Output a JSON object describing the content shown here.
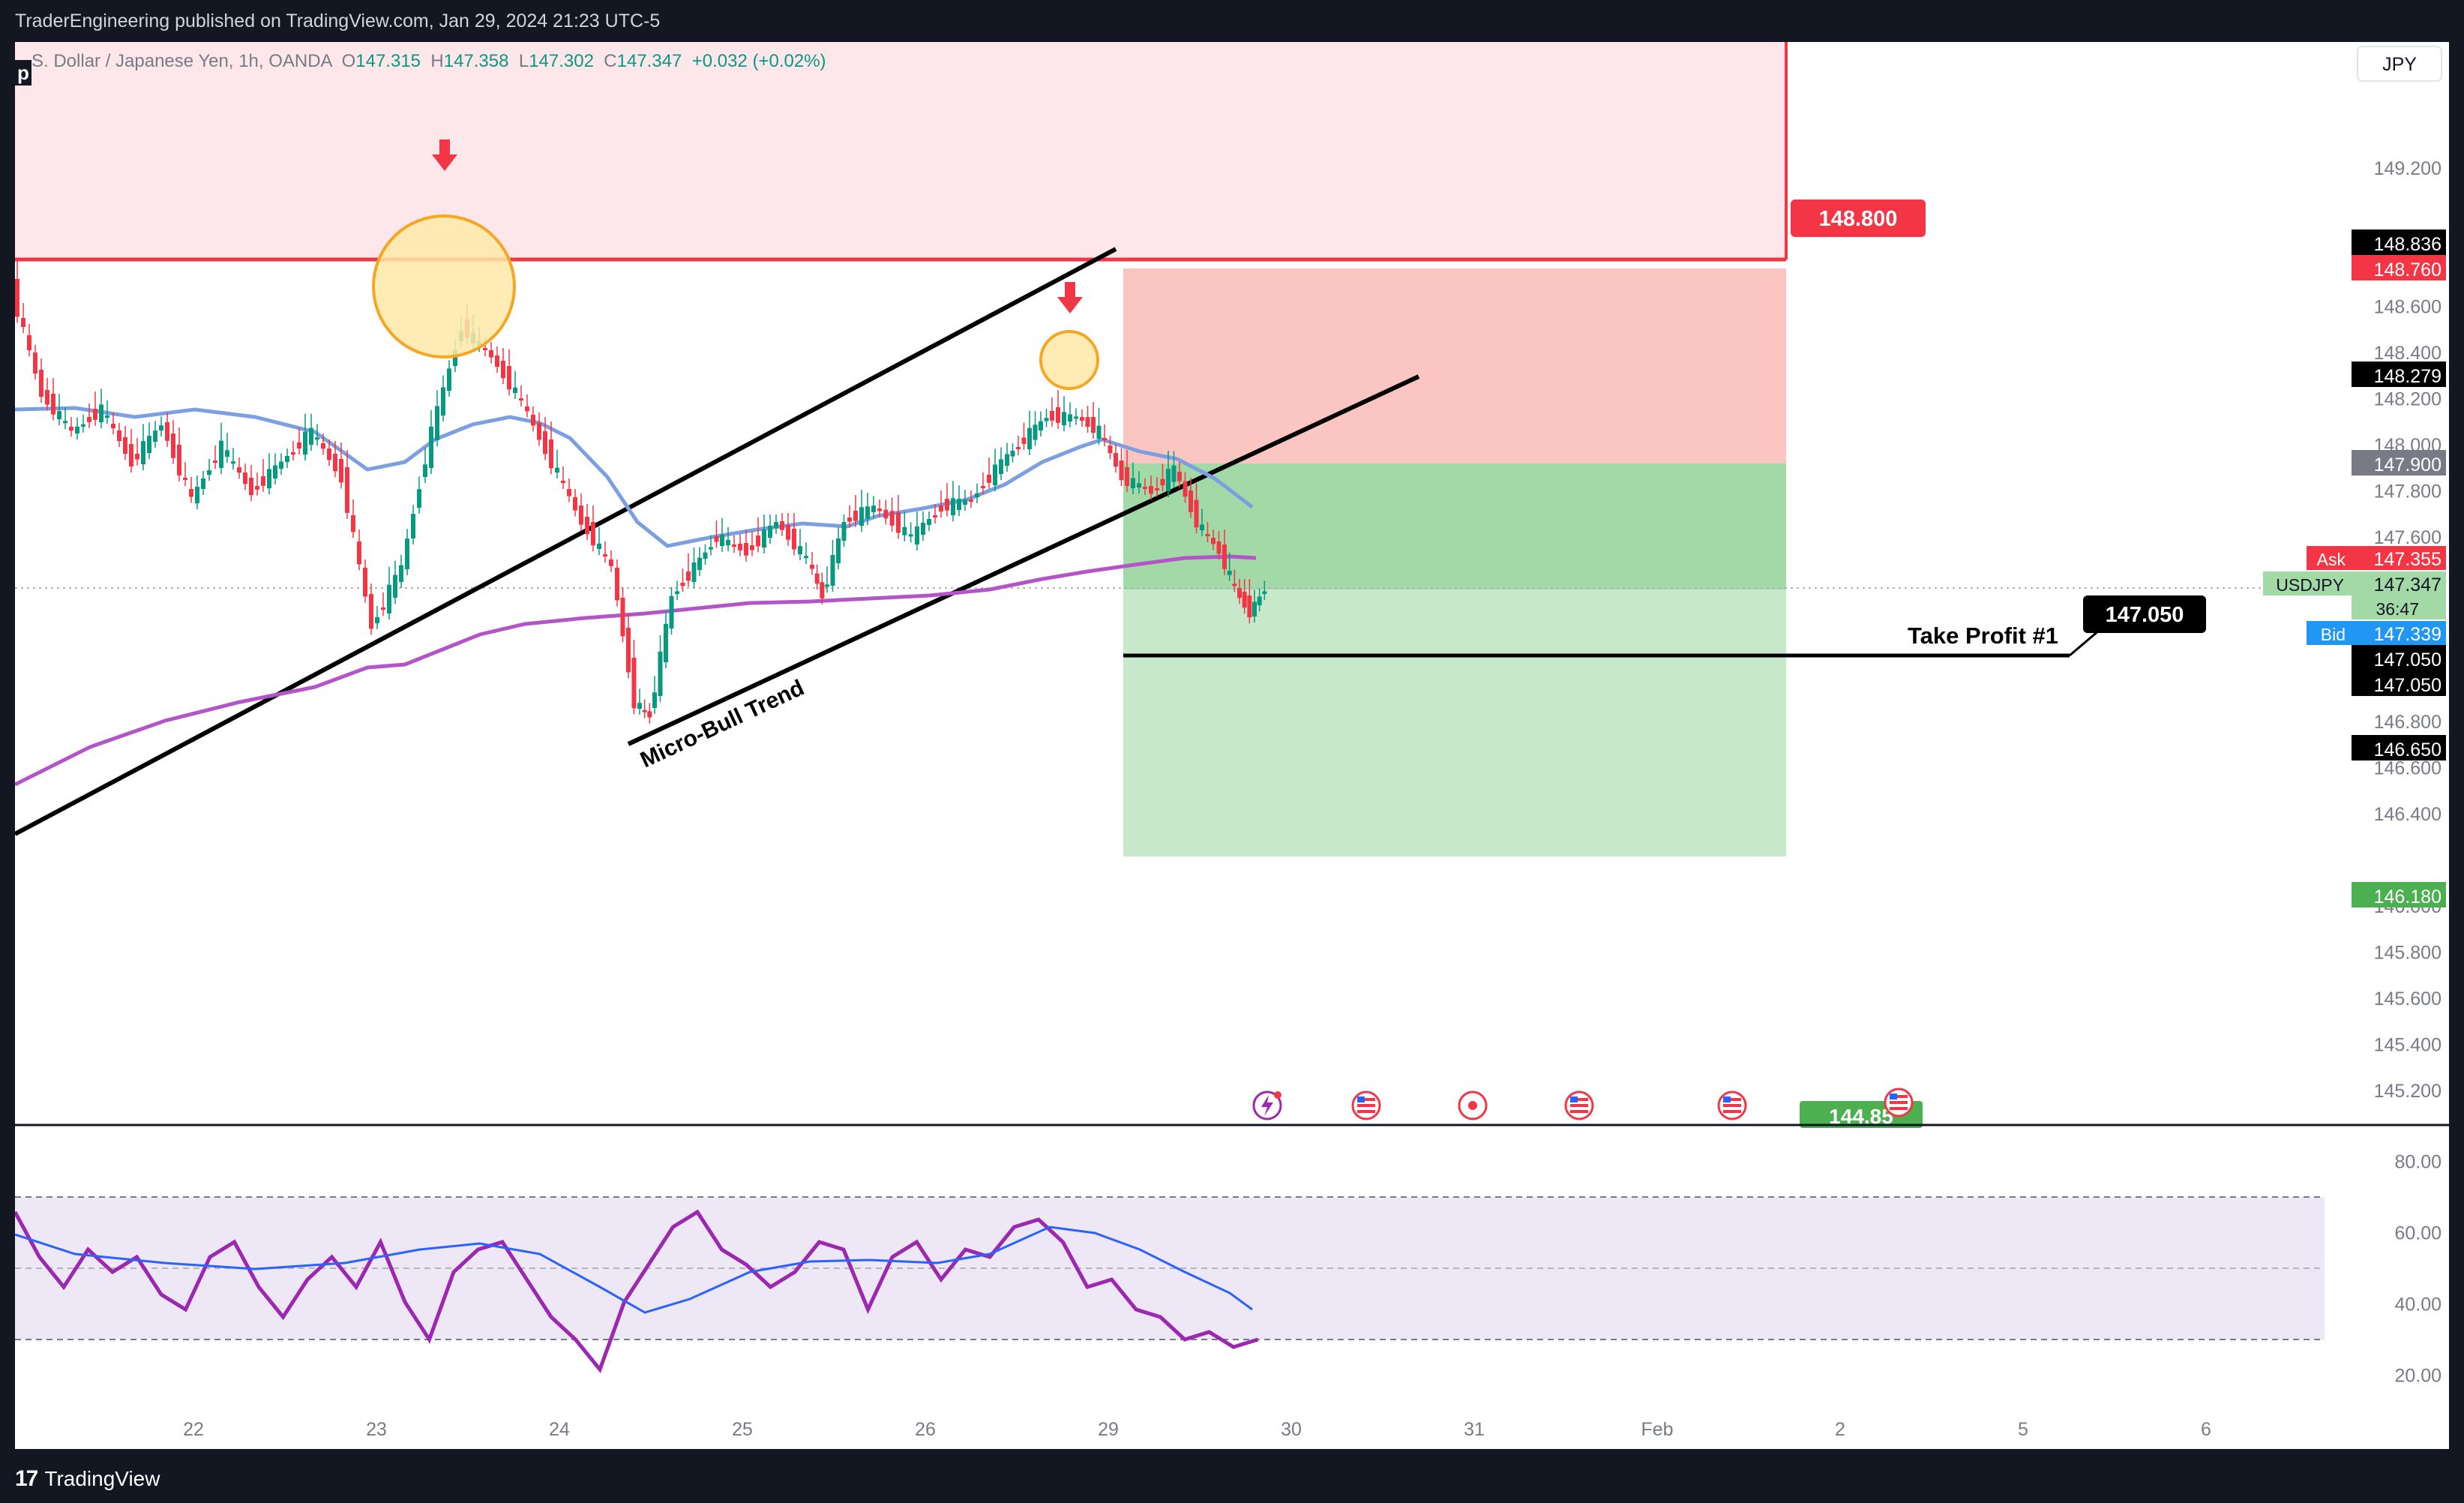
{
  "header": {
    "publisher_line": "TraderEngineering published on TradingView.com, Jan 29, 2024 21:23 UTC-5"
  },
  "legend": {
    "symbol_desc": "S. Dollar / Japanese Yen, 1h, OANDA",
    "open_label": "O",
    "open": "147.315",
    "high_label": "H",
    "high": "147.358",
    "low_label": "L",
    "low": "147.302",
    "close_label": "C",
    "close": "147.347",
    "change": "+0.032 (+0.02%)"
  },
  "currency_button": "JPY",
  "price_axis": {
    "ticks": [
      "149.200",
      "148.600",
      "148.400",
      "148.200",
      "148.000",
      "147.800",
      "147.600",
      "146.800",
      "146.600",
      "146.400",
      "146.000",
      "145.800",
      "145.600",
      "145.400",
      "145.200"
    ],
    "badges": {
      "b148836": "148.836",
      "b148760": "148.760",
      "b148279": "148.279",
      "b147900": "147.900",
      "ask_label": "Ask",
      "ask": "147.355",
      "symbol": "USDJPY",
      "last": "147.347",
      "countdown": "36:47",
      "bid_label": "Bid",
      "bid": "147.339",
      "b147050a": "147.050",
      "b147050b": "147.050",
      "b146650": "146.650",
      "b146180": "146.180"
    }
  },
  "annotations": {
    "stop_label": "148.800",
    "tp_price_label": "147.050",
    "tp_text": "Take Profit #1",
    "trend_text": "Micro-Bull Trend",
    "bottom_green_label": "144.85"
  },
  "time_axis": {
    "labels": [
      "22",
      "23",
      "24",
      "25",
      "26",
      "29",
      "30",
      "31",
      "Feb",
      "2",
      "5",
      "6"
    ]
  },
  "rsi_axis": {
    "ticks": [
      "80.00",
      "60.00",
      "40.00",
      "20.00"
    ]
  },
  "colors": {
    "bull": "#089981",
    "bear": "#f23645",
    "ma_fast": "#7b9fe0",
    "ma_slow": "#b355c9",
    "rsi": "#9c27b0",
    "rsi_ma": "#2962ff"
  },
  "footer": {
    "brand": "TradingView"
  }
}
